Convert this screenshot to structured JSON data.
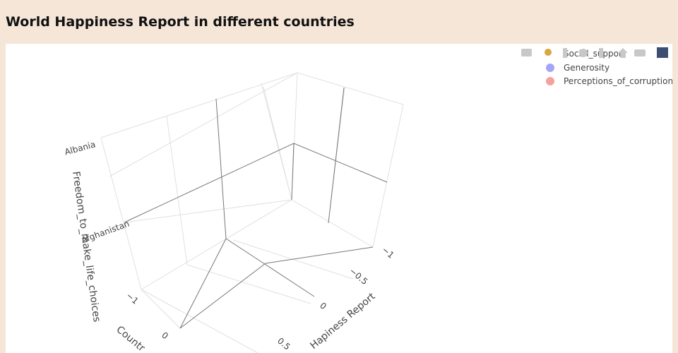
{
  "header": {
    "title": "World Happiness Report in different countries"
  },
  "scene": {
    "y_axis": {
      "ticks": [
        "Albania",
        "Afghanistan"
      ],
      "title": "Freedom_to_make_life_choices"
    },
    "x_axis": {
      "ticks": [
        "−1",
        "−0.5",
        "0",
        "0.5"
      ],
      "title": "Hapiness Report"
    },
    "z_axis": {
      "ticks": [
        "−1",
        "0"
      ],
      "title": "Countr"
    }
  },
  "legend": {
    "items": [
      "Social_support",
      "Generosity",
      "Perceptions_of_corruption"
    ]
  }
}
